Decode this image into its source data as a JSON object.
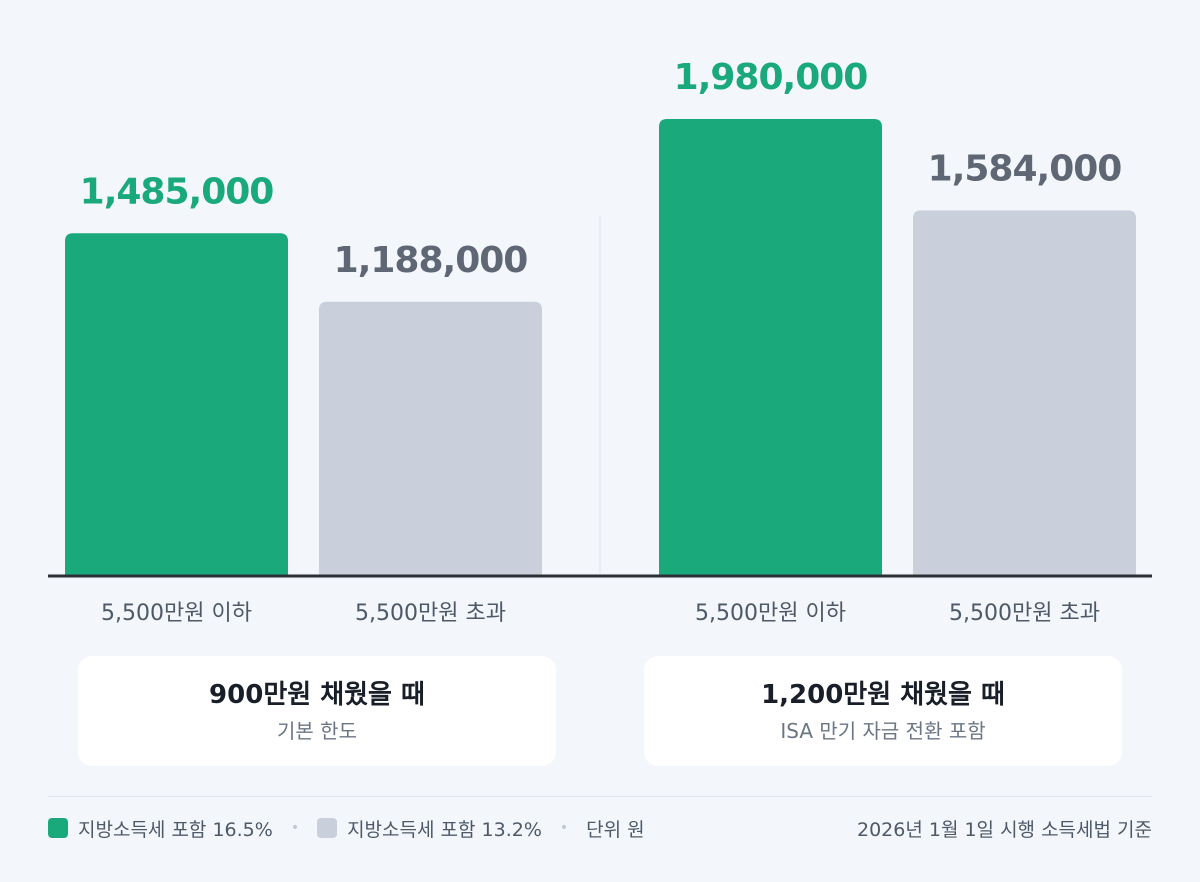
{
  "colors": {
    "green": "#19a97b",
    "gray_bar": "#c9d0dc",
    "gray_label": "#5f6674",
    "axis": "#2b2f36"
  },
  "chart_data": {
    "type": "bar",
    "groups": [
      {
        "bars": [
          {
            "category": "5,500만원 이하",
            "value": 1485000,
            "value_label": "1,485,000",
            "series": "지방소득세 포함 16.5%"
          },
          {
            "category": "5,500만원 초과",
            "value": 1188000,
            "value_label": "1,188,000",
            "series": "지방소득세 포함 13.2%"
          }
        ],
        "title": "900만원 채웠을 때",
        "subtitle": "기본 한도"
      },
      {
        "bars": [
          {
            "category": "5,500만원 이하",
            "value": 1980000,
            "value_label": "1,980,000",
            "series": "지방소득세 포함 16.5%"
          },
          {
            "category": "5,500만원 초과",
            "value": 1584000,
            "value_label": "1,584,000",
            "series": "지방소득세 포함 13.2%"
          }
        ],
        "title": "1,200만원 채웠을 때",
        "subtitle": "ISA 만기 자금 전환 포함"
      }
    ],
    "series": [
      {
        "name": "지방소득세 포함 16.5%",
        "color": "#19a97b"
      },
      {
        "name": "지방소득세 포함 13.2%",
        "color": "#c9d0dc"
      }
    ],
    "ylim": [
      0,
      1980000
    ],
    "grid": false
  },
  "legend": {
    "item1": "지방소득세 포함 16.5%",
    "item2": "지방소득세 포함 13.2%",
    "unit": "단위 원",
    "source": "2026년 1월 1일 시행 소득세법 기준"
  }
}
